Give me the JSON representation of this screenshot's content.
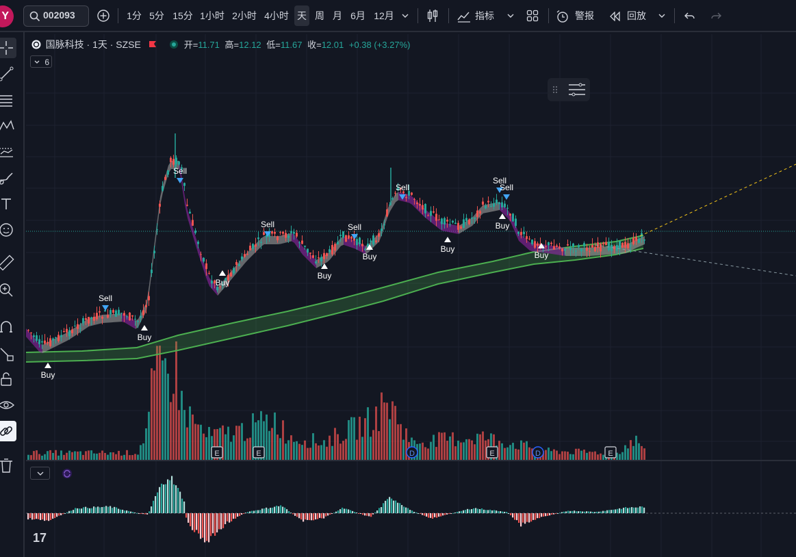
{
  "topbar": {
    "avatar": "Y",
    "symbol": "002093",
    "timeframes": [
      "1分",
      "5分",
      "15分",
      "1小时",
      "2小时",
      "4小时",
      "天",
      "周",
      "月",
      "6月",
      "12月"
    ],
    "active_timeframe": "天",
    "indicators_label": "指标",
    "alert_label": "警报",
    "replay_label": "回放"
  },
  "legend": {
    "title": "国脉科技 · 1天 · SZSE",
    "open_label": "开=",
    "open": "11.71",
    "high_label": "高=",
    "high": "12.12",
    "low_label": "低=",
    "low": "11.67",
    "close_label": "收=",
    "close": "12.01",
    "change": "+0.38 (+3.27%)",
    "collapsed_count": "6"
  },
  "signals": {
    "buy_label": "Buy",
    "sell_label": "Sell"
  },
  "event_markers": [
    "E",
    "E",
    "D",
    "E",
    "D",
    "E"
  ],
  "colors": {
    "background": "#131722",
    "up": "#26a69a",
    "down": "#ef5350",
    "ribbon_green": "#4caf50",
    "ribbon_purple": "#9c27b0",
    "ribbon_gray": "#9e9e9e",
    "trend_yellow": "#f5c518",
    "signal_blue": "#42a5f5",
    "macd_pos_light": "#b2dfdb",
    "macd_neg_light": "#ffcdd2"
  },
  "logo_text": "17"
}
